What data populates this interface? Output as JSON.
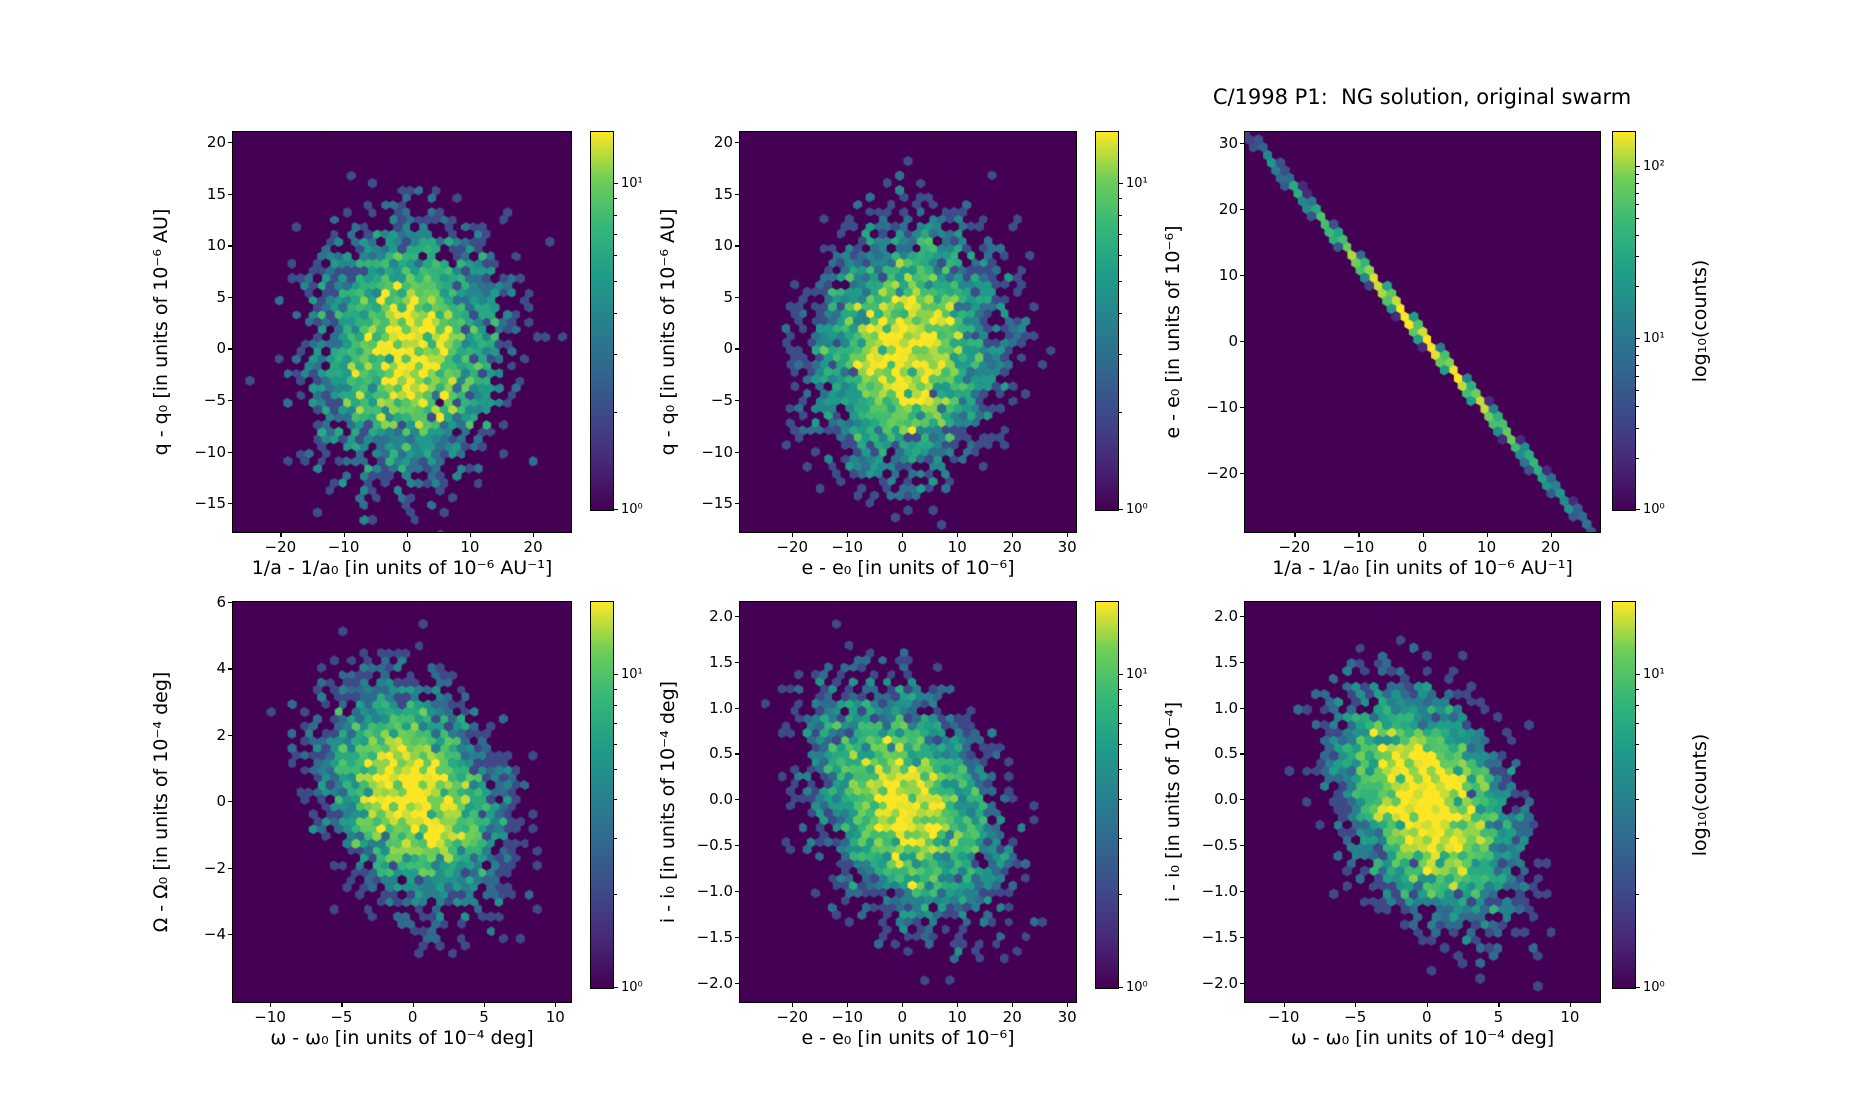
{
  "figure": {
    "background": "#ffffff",
    "colormap": "viridis",
    "colors": {
      "bin_background": "#440154",
      "bin_peak": "#fde725",
      "text": "#000000"
    }
  },
  "chart_data": {
    "type": "hexbin",
    "title": "C/1998 P1:  NG solution, original swarm",
    "title_position": "above top-right panel",
    "grid": false,
    "legend": "colorbar per panel, log scale",
    "panels": [
      {
        "id": "top-left",
        "xlabel": "1/a - 1/a₀ [in units of 10⁻⁶ AU⁻¹]",
        "ylabel": "q - q₀ [in units of 10⁻⁶ AU]",
        "xlim": [
          -27.5,
          26.0
        ],
        "ylim": [
          -17.8,
          21.0
        ],
        "xtick_values": [
          -20,
          -10,
          0,
          10,
          20
        ],
        "xtick_labels": [
          "−20",
          "−10",
          "0",
          "10",
          "20"
        ],
        "ytick_values": [
          20,
          15,
          10,
          5,
          0,
          -5,
          -10,
          -15
        ],
        "ytick_labels": [
          "20",
          "15",
          "10",
          "5",
          "0",
          "−5",
          "−10",
          "−15"
        ],
        "colorbar": {
          "scale": "log",
          "vmin": 1,
          "vmax": 14.3,
          "tick_values": [
            10,
            1
          ],
          "tick_labels": [
            "10¹",
            "10⁰"
          ],
          "label": null
        },
        "distribution": {
          "kind": "gaussian2d",
          "center": [
            0.3,
            0.0
          ],
          "sigma": [
            8.3,
            6.6
          ],
          "rho": 0.05,
          "n": 5000
        }
      },
      {
        "id": "top-middle",
        "xlabel": "e - e₀ [in units of 10⁻⁶]",
        "ylabel": "q - q₀ [in units of 10⁻⁶ AU]",
        "xlim": [
          -29.5,
          31.6
        ],
        "ylim": [
          -17.8,
          21.0
        ],
        "xtick_values": [
          -20,
          -10,
          0,
          10,
          20,
          30
        ],
        "xtick_labels": [
          "−20",
          "−10",
          "0",
          "10",
          "20",
          "30"
        ],
        "ytick_values": [
          20,
          15,
          10,
          5,
          0,
          -5,
          -10,
          -15
        ],
        "ytick_labels": [
          "20",
          "15",
          "10",
          "5",
          "0",
          "−5",
          "−10",
          "−15"
        ],
        "colorbar": {
          "scale": "log",
          "vmin": 1,
          "vmax": 14.3,
          "tick_values": [
            10,
            1
          ],
          "tick_labels": [
            "10¹",
            "10⁰"
          ],
          "label": null
        },
        "distribution": {
          "kind": "gaussian2d",
          "center": [
            0.8,
            0.0
          ],
          "sigma": [
            9.2,
            6.6
          ],
          "rho": 0.12,
          "n": 5000
        }
      },
      {
        "id": "top-right",
        "xlabel": "1/a - 1/a₀ [in units of 10⁻⁶ AU⁻¹]",
        "ylabel": "e - e₀ [in units of 10⁻⁶]",
        "xlim": [
          -27.7,
          27.7
        ],
        "ylim": [
          -28.9,
          31.7
        ],
        "xtick_values": [
          -20,
          -10,
          0,
          10,
          20
        ],
        "xtick_labels": [
          "−20",
          "−10",
          "0",
          "10",
          "20"
        ],
        "ytick_values": [
          30,
          20,
          10,
          0,
          -10,
          -20
        ],
        "ytick_labels": [
          "30",
          "20",
          "10",
          "0",
          "−10",
          "−20"
        ],
        "colorbar": {
          "scale": "log",
          "vmin": 1,
          "vmax": 158,
          "tick_values": [
            100,
            10,
            1
          ],
          "tick_labels": [
            "10²",
            "10¹",
            "10⁰"
          ],
          "label": "log₁₀(counts)"
        },
        "distribution": {
          "kind": "correlated-line",
          "slope": -1.124,
          "intercept": 0.8,
          "sigma_x": 10.3,
          "scatter": 0.3,
          "n": 5000
        }
      },
      {
        "id": "bottom-left",
        "xlabel": "ω - ω₀ [in units of 10⁻⁴ deg]",
        "ylabel": "Ω - Ω₀ [in units of 10⁻⁴ deg]",
        "xlim": [
          -12.6,
          11.1
        ],
        "ylim": [
          -6.05,
          6.0
        ],
        "xtick_values": [
          -10,
          -5,
          0,
          5,
          10
        ],
        "xtick_labels": [
          "−10",
          "−5",
          "0",
          "5",
          "10"
        ],
        "ytick_values": [
          6,
          4,
          2,
          0,
          -2,
          -4
        ],
        "ytick_labels": [
          "6",
          "4",
          "2",
          "0",
          "−2",
          "−4"
        ],
        "colorbar": {
          "scale": "log",
          "vmin": 1,
          "vmax": 17,
          "tick_values": [
            10,
            1
          ],
          "tick_labels": [
            "10¹",
            "10⁰"
          ],
          "label": null
        },
        "distribution": {
          "kind": "gaussian2d",
          "center": [
            0.0,
            0.2
          ],
          "sigma": [
            3.3,
            1.75
          ],
          "rho": -0.3,
          "n": 5000
        }
      },
      {
        "id": "bottom-middle",
        "xlabel": "e - e₀ [in units of 10⁻⁶]",
        "ylabel": "i - i₀ [in units of 10⁻⁴ deg]",
        "xlim": [
          -29.5,
          31.6
        ],
        "ylim": [
          -2.21,
          2.15
        ],
        "xtick_values": [
          -20,
          -10,
          0,
          10,
          20,
          30
        ],
        "xtick_labels": [
          "−20",
          "−10",
          "0",
          "10",
          "20",
          "30"
        ],
        "ytick_values": [
          2,
          1.5,
          1,
          0.5,
          0,
          -0.5,
          -1,
          -1.5,
          -2
        ],
        "ytick_labels": [
          "2.0",
          "1.5",
          "1.0",
          "0.5",
          "0.0",
          "−0.5",
          "−1.0",
          "−1.5",
          "−2.0"
        ],
        "colorbar": {
          "scale": "log",
          "vmin": 1,
          "vmax": 17,
          "tick_values": [
            10,
            1
          ],
          "tick_labels": [
            "10¹",
            "10⁰"
          ],
          "label": null
        },
        "distribution": {
          "kind": "gaussian2d",
          "center": [
            0.8,
            -0.05
          ],
          "sigma": [
            9.0,
            0.68
          ],
          "rho": -0.35,
          "n": 5000
        }
      },
      {
        "id": "bottom-right",
        "xlabel": "ω - ω₀ [in units of 10⁻⁴ deg]",
        "ylabel": "i - i₀ [in units of 10⁻⁴]",
        "xlim": [
          -12.7,
          12.1
        ],
        "ylim": [
          -2.21,
          2.15
        ],
        "xtick_values": [
          -10,
          -5,
          0,
          5,
          10
        ],
        "xtick_labels": [
          "−10",
          "−5",
          "0",
          "5",
          "10"
        ],
        "ytick_values": [
          2,
          1.5,
          1,
          0.5,
          0,
          -0.5,
          -1,
          -1.5,
          -2
        ],
        "ytick_labels": [
          "2.0",
          "1.5",
          "1.0",
          "0.5",
          "0.0",
          "−0.5",
          "−1.0",
          "−1.5",
          "−2.0"
        ],
        "colorbar": {
          "scale": "log",
          "vmin": 1,
          "vmax": 17,
          "tick_values": [
            10,
            1
          ],
          "tick_labels": [
            "10¹",
            "10⁰"
          ],
          "label": "log₁₀(counts)"
        },
        "distribution": {
          "kind": "gaussian2d",
          "center": [
            0.0,
            -0.05
          ],
          "sigma": [
            3.3,
            0.68
          ],
          "rho": -0.35,
          "n": 5000
        }
      }
    ]
  }
}
